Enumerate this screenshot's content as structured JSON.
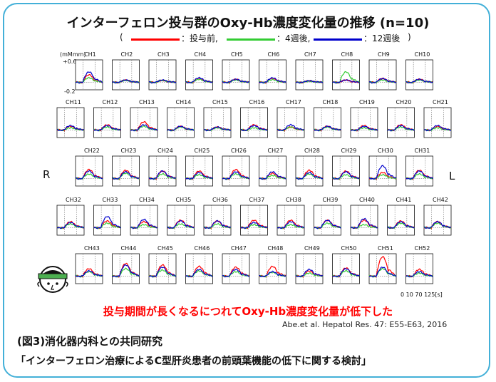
{
  "title": "インターフェロン投与群のOxy-Hb濃度変化量の推移 (n=10)",
  "legend": {
    "open": "(",
    "close": ")",
    "items": [
      {
        "label": "：投与前,",
        "color": "#ff0000"
      },
      {
        "label": "：4週後,",
        "color": "#33cc33"
      },
      {
        "label": "：12週後",
        "color": "#0000cc"
      }
    ]
  },
  "yaxis": {
    "unit": "(mMmm)",
    "top": "+0.6",
    "bottom": "-0.2"
  },
  "xaxis": {
    "ticks": "0  10  70  125[s]"
  },
  "side_left": "R",
  "side_right": "L",
  "chart_data": {
    "type": "line",
    "ylim": [
      -0.2,
      0.6
    ],
    "xlim": [
      0,
      125
    ],
    "series_names": [
      "投与前",
      "4週後",
      "12週後"
    ],
    "series_colors": [
      "#ff0000",
      "#33cc33",
      "#0000cc"
    ],
    "channels": [
      "CH1",
      "CH2",
      "CH3",
      "CH4",
      "CH5",
      "CH6",
      "CH7",
      "CH8",
      "CH9",
      "CH10",
      "CH11",
      "CH12",
      "CH13",
      "CH14",
      "CH15",
      "CH16",
      "CH17",
      "CH18",
      "CH19",
      "CH20",
      "CH21",
      "CH22",
      "CH23",
      "CH24",
      "CH25",
      "CH26",
      "CH27",
      "CH28",
      "CH29",
      "CH30",
      "CH31",
      "CH32",
      "CH33",
      "CH34",
      "CH35",
      "CH36",
      "CH37",
      "CH38",
      "CH39",
      "CH40",
      "CH41",
      "CH42",
      "CH43",
      "CH44",
      "CH45",
      "CH46",
      "CH47",
      "CH48",
      "CH49",
      "CH50",
      "CH51",
      "CH52"
    ],
    "peaks": [
      [
        0.2,
        0.12,
        0.28
      ],
      [
        0.06,
        0.05,
        0.06
      ],
      [
        0.05,
        0.05,
        0.06
      ],
      [
        0.1,
        0.08,
        0.12
      ],
      [
        0.08,
        0.06,
        0.08
      ],
      [
        0.1,
        0.07,
        0.12
      ],
      [
        0.04,
        0.03,
        0.04
      ],
      [
        0.06,
        0.28,
        0.06
      ],
      [
        0.1,
        0.06,
        0.1
      ],
      [
        0.08,
        0.06,
        0.08
      ],
      [
        0.1,
        0.06,
        0.12
      ],
      [
        0.14,
        0.08,
        0.12
      ],
      [
        0.22,
        0.1,
        0.14
      ],
      [
        0.1,
        0.08,
        0.1
      ],
      [
        0.08,
        0.06,
        0.08
      ],
      [
        0.14,
        0.06,
        0.12
      ],
      [
        0.08,
        0.08,
        0.14
      ],
      [
        0.1,
        0.08,
        0.1
      ],
      [
        0.12,
        0.06,
        0.1
      ],
      [
        0.14,
        0.08,
        0.12
      ],
      [
        0.1,
        0.06,
        0.12
      ],
      [
        0.24,
        0.12,
        0.2
      ],
      [
        0.22,
        0.14,
        0.18
      ],
      [
        0.2,
        0.12,
        0.2
      ],
      [
        0.2,
        0.1,
        0.16
      ],
      [
        0.24,
        0.12,
        0.18
      ],
      [
        0.14,
        0.08,
        0.18
      ],
      [
        0.22,
        0.12,
        0.16
      ],
      [
        0.2,
        0.1,
        0.18
      ],
      [
        0.16,
        0.1,
        0.34
      ],
      [
        0.22,
        0.12,
        0.2
      ],
      [
        0.16,
        0.1,
        0.14
      ],
      [
        0.18,
        0.12,
        0.3
      ],
      [
        0.16,
        0.08,
        0.22
      ],
      [
        0.2,
        0.1,
        0.18
      ],
      [
        0.18,
        0.1,
        0.18
      ],
      [
        0.2,
        0.08,
        0.14
      ],
      [
        0.2,
        0.08,
        0.16
      ],
      [
        0.2,
        0.12,
        0.2
      ],
      [
        0.2,
        0.08,
        0.24
      ],
      [
        0.18,
        0.12,
        0.16
      ],
      [
        0.16,
        0.12,
        0.16
      ],
      [
        0.2,
        0.12,
        0.14
      ],
      [
        0.34,
        0.2,
        0.3
      ],
      [
        0.3,
        0.16,
        0.24
      ],
      [
        0.26,
        0.14,
        0.18
      ],
      [
        0.24,
        0.12,
        0.18
      ],
      [
        0.26,
        0.1,
        0.12
      ],
      [
        0.14,
        0.08,
        0.18
      ],
      [
        0.22,
        0.14,
        0.2
      ],
      [
        0.52,
        0.2,
        0.24
      ],
      [
        0.18,
        0.08,
        0.12
      ]
    ]
  },
  "conclusion": "投与期間が長くなるにつれてOxy-Hb濃度変化量が低下した",
  "reference": "Abe.et al. Hepatol Res. 47: E55-E63, 2016",
  "caption_line1": "(図3)消化器内科との共同研究",
  "caption_line2": "「インターフェロン治療によるC型肝炎患者の前頭葉機能の低下に関する検討」"
}
